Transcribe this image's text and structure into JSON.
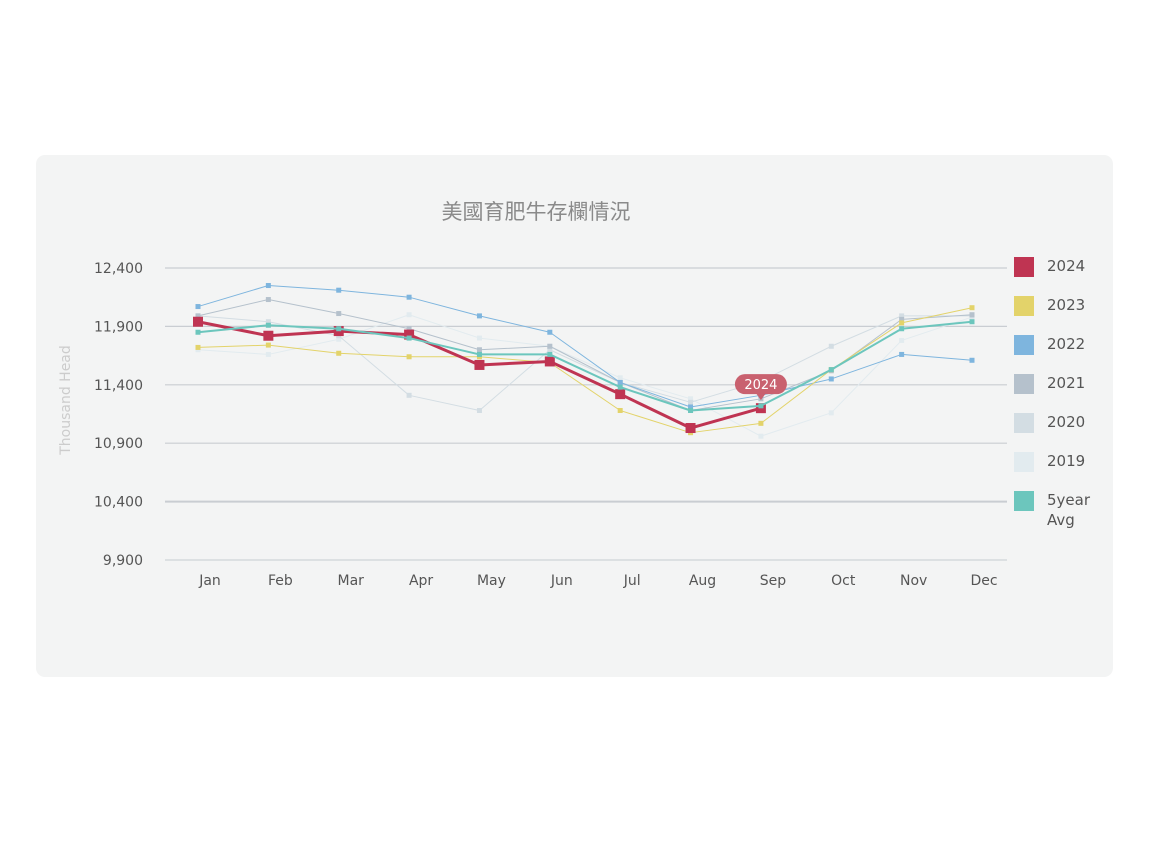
{
  "chart_data": {
    "type": "line",
    "title": "美國育肥牛存欄情況",
    "ylabel": "Thousand Head",
    "xlabel": "",
    "categories": [
      "Jan",
      "Feb",
      "Mar",
      "Apr",
      "May",
      "Jun",
      "Jul",
      "Aug",
      "Sep",
      "Oct",
      "Nov",
      "Dec"
    ],
    "yticks": [
      "12,400",
      "11,900",
      "11,400",
      "10,900",
      "10,400",
      "9,900"
    ],
    "ylim": [
      9900,
      12400
    ],
    "grid": true,
    "legend_position": "right",
    "tooltip": {
      "label": "2024",
      "series": "2024",
      "category": "Sep"
    },
    "series": [
      {
        "name": "2019",
        "color": "#e2ebef",
        "width": 1,
        "values": [
          11700,
          11660,
          11790,
          12000,
          11800,
          11730,
          11460,
          11280,
          10960,
          11160,
          11780,
          11980
        ]
      },
      {
        "name": "2020",
        "color": "#d3dde3",
        "width": 1,
        "values": [
          11990,
          11940,
          11820,
          11310,
          11180,
          11700,
          11420,
          11250,
          11430,
          11730,
          11990,
          11990
        ]
      },
      {
        "name": "2021",
        "color": "#b5c1cc",
        "width": 1,
        "values": [
          11990,
          12130,
          12010,
          11880,
          11700,
          11730,
          11420,
          11180,
          11280,
          11520,
          11960,
          12000
        ]
      },
      {
        "name": "2022",
        "color": "#7eb5de",
        "width": 1,
        "values": [
          12070,
          12250,
          12210,
          12150,
          11990,
          11850,
          11420,
          11210,
          11310,
          11450,
          11660,
          11610
        ]
      },
      {
        "name": "2023",
        "color": "#e3d36a",
        "width": 1,
        "values": [
          11720,
          11740,
          11670,
          11640,
          11640,
          11590,
          11180,
          10990,
          11070,
          11530,
          11930,
          12060
        ]
      },
      {
        "name": "2024",
        "color": "#bf3452",
        "width": 3,
        "values": [
          11940,
          11820,
          11860,
          11830,
          11570,
          11600,
          11320,
          11030,
          11200,
          null,
          null,
          null
        ]
      },
      {
        "name": "5year\nAvg",
        "color": "#6cc6bd",
        "width": 2,
        "values": [
          11850,
          11910,
          11880,
          11800,
          11660,
          11660,
          11380,
          11180,
          11220,
          11530,
          11880,
          11940
        ]
      }
    ],
    "legend_order": [
      "2024",
      "2023",
      "2022",
      "2021",
      "2020",
      "2019",
      "5year\nAvg"
    ]
  }
}
